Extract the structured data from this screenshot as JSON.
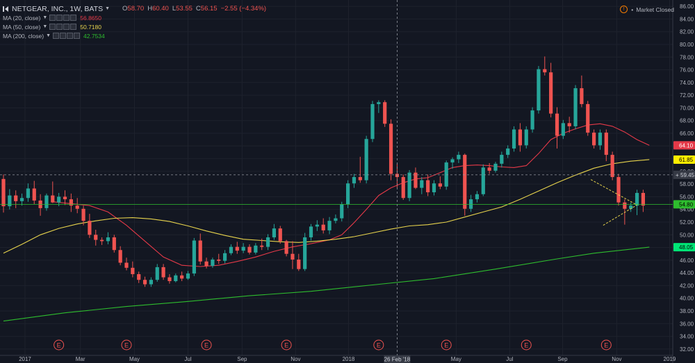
{
  "header": {
    "title": "NETGEAR, INC., 1W, BATS",
    "ohlc": [
      {
        "label": "O",
        "value": "58.70"
      },
      {
        "label": "H",
        "value": "60.40"
      },
      {
        "label": "L",
        "value": "53.55"
      },
      {
        "label": "C",
        "value": "56.15"
      }
    ],
    "change": "−2.55 (−4.34%)",
    "market_status": "Market Closed"
  },
  "indicators": [
    {
      "name": "MA (20, close)",
      "value": "56.8650",
      "color": "#e53948"
    },
    {
      "name": "MA (50, close)",
      "value": "50.7180",
      "color": "#e8d44d"
    },
    {
      "name": "MA (200, close)",
      "value": "42.7534",
      "color": "#2ebd2e"
    }
  ],
  "chart_data": {
    "type": "candlestick",
    "y_range": [
      31,
      87
    ],
    "y_ticks": [
      "32.00",
      "34.00",
      "36.00",
      "38.00",
      "40.00",
      "42.00",
      "44.00",
      "46.00",
      "48.00",
      "50.00",
      "52.00",
      "54.00",
      "56.00",
      "58.00",
      "60.00",
      "62.00",
      "64.00",
      "66.00",
      "68.00",
      "70.00",
      "72.00",
      "74.00",
      "76.00",
      "78.00",
      "80.00",
      "82.00",
      "84.00",
      "86.00"
    ],
    "x_labels": [
      {
        "label": "2017",
        "week": 3.5
      },
      {
        "label": "Mar",
        "week": 12.5
      },
      {
        "label": "May",
        "week": 21.3
      },
      {
        "label": "Jul",
        "week": 30
      },
      {
        "label": "Sep",
        "week": 38.8
      },
      {
        "label": "Nov",
        "week": 47.5
      },
      {
        "label": "2018",
        "week": 56.1
      },
      {
        "label": "May",
        "week": 73.6
      },
      {
        "label": "Jul",
        "week": 82.3
      },
      {
        "label": "Sep",
        "week": 90.9
      },
      {
        "label": "Nov",
        "week": 99.7
      },
      {
        "label": "2019",
        "week": 108.3
      }
    ],
    "crosshair": {
      "week": 64,
      "price": 59.45,
      "date_label": "26 Feb '18",
      "price_label": "59.45"
    },
    "price_labels": [
      {
        "value": 64.1,
        "text": "64.10",
        "bg": "#e53948",
        "fg": "#ffffff"
      },
      {
        "value": 61.85,
        "text": "61.85",
        "bg": "#ffee00",
        "fg": "#000000"
      },
      {
        "value": 54.8,
        "text": "54.80",
        "bg": "#2ebd2e",
        "fg": "#000000"
      },
      {
        "value": 48.05,
        "text": "48.05",
        "bg": "#00e676",
        "fg": "#000000"
      }
    ],
    "current_price_line": 54.8,
    "earnings": {
      "label": "E",
      "weeks": [
        9,
        20,
        33,
        46,
        61,
        72,
        85,
        98
      ]
    },
    "triangle": {
      "upper_start": [
        95.5,
        58.7
      ],
      "lower_start": [
        97.5,
        51.5
      ],
      "apex": [
        103,
        54.7
      ]
    },
    "candles": [
      [
        0,
        58.8,
        59.5,
        53.5,
        54.5
      ],
      [
        1,
        54.5,
        57.2,
        54,
        56.2
      ],
      [
        2,
        56.2,
        57,
        54.2,
        55.3
      ],
      [
        3,
        55.3,
        56.5,
        54.6,
        55.8
      ],
      [
        4,
        55.8,
        58.1,
        55.2,
        57.3
      ],
      [
        5,
        57.3,
        58.5,
        54.8,
        55.4
      ],
      [
        6,
        55.4,
        56.4,
        53,
        54.2
      ],
      [
        7,
        54.2,
        56.5,
        53.8,
        56.2
      ],
      [
        8,
        56.2,
        58.4,
        55,
        55.1
      ],
      [
        9,
        55.1,
        56.6,
        54.5,
        56
      ],
      [
        10,
        56,
        57,
        54.7,
        55.6
      ],
      [
        11,
        55.6,
        56.5,
        53.6,
        54.6
      ],
      [
        12,
        54.6,
        55.8,
        53.4,
        54.1
      ],
      [
        13,
        54.1,
        54.6,
        51.5,
        52.2
      ],
      [
        14,
        52.2,
        53.3,
        49.5,
        50
      ],
      [
        15,
        50,
        50.8,
        48.3,
        49.2
      ],
      [
        16,
        49.2,
        49.6,
        48.4,
        49
      ],
      [
        17,
        49,
        50.4,
        48.5,
        49.6
      ],
      [
        18,
        49.6,
        50,
        47.2,
        47.6
      ],
      [
        19,
        47.6,
        48.2,
        45.2,
        45.6
      ],
      [
        20,
        45.6,
        46.4,
        44.4,
        44.8
      ],
      [
        21,
        44.8,
        45.8,
        43.3,
        43.8
      ],
      [
        22,
        43.8,
        44.2,
        42.4,
        42.9
      ],
      [
        23,
        42.9,
        43.4,
        41.8,
        42.2
      ],
      [
        24,
        42.2,
        43.3,
        41.8,
        42.9
      ],
      [
        25,
        42.9,
        45.4,
        42.6,
        44.9
      ],
      [
        26,
        44.9,
        45.4,
        42.9,
        43.3
      ],
      [
        27,
        43.3,
        43.8,
        42.3,
        42.7
      ],
      [
        28,
        42.7,
        43.9,
        42.5,
        43.6
      ],
      [
        29,
        43.6,
        44.2,
        42.7,
        43.1
      ],
      [
        30,
        43.1,
        44.3,
        42.9,
        43.9
      ],
      [
        31,
        43.9,
        49.5,
        43.5,
        49.1
      ],
      [
        32,
        49.1,
        50.2,
        45.3,
        45.8
      ],
      [
        33,
        45.8,
        46.4,
        44.7,
        45.1
      ],
      [
        34,
        45.1,
        46.4,
        44.8,
        46.1
      ],
      [
        35,
        46.1,
        47,
        45.4,
        45.9
      ],
      [
        36,
        45.9,
        47.6,
        45.5,
        47.1
      ],
      [
        37,
        47.1,
        48.5,
        46.8,
        48.1
      ],
      [
        38,
        48.1,
        48.9,
        47,
        47.5
      ],
      [
        39,
        47.5,
        48.7,
        47.1,
        48.1
      ],
      [
        40,
        48.1,
        48.5,
        46.9,
        47.2
      ],
      [
        41,
        47.2,
        48.7,
        46.9,
        48.3
      ],
      [
        42,
        48.3,
        49.4,
        47.6,
        48.1
      ],
      [
        43,
        48.1,
        50.1,
        47.6,
        49.6
      ],
      [
        44,
        49.6,
        51.7,
        49.2,
        51
      ],
      [
        45,
        51,
        51.4,
        48.6,
        49
      ],
      [
        46,
        49,
        49.2,
        46.6,
        47
      ],
      [
        47,
        47,
        49,
        44.6,
        46.1
      ],
      [
        48,
        46.1,
        47,
        44.3,
        44.6
      ],
      [
        49,
        44.6,
        50.3,
        44.3,
        49.6
      ],
      [
        50,
        49.6,
        51.7,
        49.1,
        51.3
      ],
      [
        51,
        51.3,
        52.3,
        50.6,
        51.6
      ],
      [
        52,
        51.6,
        52.6,
        50.2,
        50.7
      ],
      [
        53,
        50.7,
        52.8,
        50.1,
        52.2
      ],
      [
        54,
        52.2,
        53.2,
        51.8,
        52.6
      ],
      [
        55,
        52.6,
        55.2,
        52.1,
        54.8
      ],
      [
        56,
        54.8,
        58.6,
        54.2,
        58.1
      ],
      [
        57,
        58.1,
        59.6,
        57.4,
        59.1
      ],
      [
        58,
        59.1,
        62.3,
        58.2,
        58.6
      ],
      [
        59,
        58.6,
        65.6,
        58.1,
        65.1
      ],
      [
        60,
        65.1,
        71.1,
        64.6,
        70.6
      ],
      [
        61,
        70.6,
        71.2,
        69.2,
        70.9
      ],
      [
        62,
        70.9,
        71.2,
        67,
        67.5
      ],
      [
        63,
        67.5,
        68.2,
        58.6,
        59.6
      ],
      [
        64,
        59.6,
        61.2,
        57.4,
        59.1
      ],
      [
        65,
        59.1,
        59.5,
        55.5,
        55.8
      ],
      [
        66,
        55.8,
        60.2,
        55.3,
        59.8
      ],
      [
        67,
        59.8,
        60.6,
        57.2,
        57.4
      ],
      [
        68,
        57.4,
        59.1,
        56.4,
        58.6
      ],
      [
        69,
        58.6,
        59.5,
        56.1,
        56.7
      ],
      [
        70,
        56.7,
        58.6,
        56.2,
        58.1
      ],
      [
        71,
        58.1,
        59.2,
        57.2,
        57.6
      ],
      [
        72,
        57.6,
        61.7,
        57.1,
        61.4
      ],
      [
        73,
        61.4,
        62.2,
        60.4,
        61.9
      ],
      [
        74,
        61.9,
        63.1,
        61.3,
        62.6
      ],
      [
        75,
        62.6,
        62.8,
        53,
        54.1
      ],
      [
        76,
        54.1,
        56.3,
        53.6,
        55.6
      ],
      [
        77,
        55.6,
        56.9,
        55.1,
        56.4
      ],
      [
        78,
        56.4,
        61.1,
        56.1,
        60.6
      ],
      [
        79,
        60.6,
        61.3,
        59.6,
        60.1
      ],
      [
        80,
        60.1,
        61.5,
        59.8,
        61.2
      ],
      [
        81,
        61.2,
        63.1,
        60.6,
        62.6
      ],
      [
        82,
        62.6,
        64.1,
        62.1,
        63.6
      ],
      [
        83,
        63.6,
        67.1,
        63.1,
        66.6
      ],
      [
        84,
        66.6,
        67.6,
        63.1,
        64.1
      ],
      [
        85,
        64.1,
        67.1,
        63.6,
        66.6
      ],
      [
        86,
        66.6,
        70.1,
        66.1,
        69.6
      ],
      [
        87,
        69.6,
        76.6,
        69.1,
        76.1
      ],
      [
        88,
        76.1,
        78.1,
        75.1,
        75.6
      ],
      [
        89,
        75.6,
        77.1,
        68.5,
        69.1
      ],
      [
        90,
        69.1,
        70.1,
        63.6,
        65.6
      ],
      [
        91,
        65.6,
        68.1,
        65.1,
        67.6
      ],
      [
        92,
        67.6,
        68.6,
        66.1,
        67.1
      ],
      [
        93,
        67.1,
        73.6,
        66.6,
        73.1
      ],
      [
        94,
        73.1,
        75.1,
        70.1,
        70.6
      ],
      [
        95,
        70.6,
        71.1,
        65.6,
        66.1
      ],
      [
        96,
        66.1,
        66.6,
        63.6,
        64.1
      ],
      [
        97,
        64.1,
        66.6,
        63.4,
        66.1
      ],
      [
        98,
        66.1,
        66.6,
        61.6,
        62.6
      ],
      [
        99,
        62.6,
        63.1,
        58.6,
        59.1
      ],
      [
        100,
        59.1,
        59.6,
        54.6,
        55.1
      ],
      [
        101,
        55.1,
        55.6,
        51.6,
        54.1
      ],
      [
        102,
        54.1,
        55.1,
        53.6,
        54.6
      ],
      [
        103,
        54.6,
        57.1,
        53.1,
        56.6
      ],
      [
        104,
        56.6,
        57.1,
        53.6,
        54.6
      ]
    ],
    "ma": [
      {
        "name": "MA (20, close)",
        "color": "#e53948",
        "points": [
          [
            8,
            55.2
          ],
          [
            14,
            54.6
          ],
          [
            17,
            53.6
          ],
          [
            20,
            51.5
          ],
          [
            23,
            49
          ],
          [
            26,
            46.5
          ],
          [
            29,
            45.2
          ],
          [
            32,
            45
          ],
          [
            35,
            45.2
          ],
          [
            38,
            45.8
          ],
          [
            41,
            46.5
          ],
          [
            44,
            47.4
          ],
          [
            47,
            48.1
          ],
          [
            50,
            48.6
          ],
          [
            53,
            49.2
          ],
          [
            55,
            50
          ],
          [
            57,
            51.9
          ],
          [
            59,
            54
          ],
          [
            61,
            56.2
          ],
          [
            63,
            57.4
          ],
          [
            65,
            58.2
          ],
          [
            67,
            58.8
          ],
          [
            69,
            59
          ],
          [
            71,
            59.8
          ],
          [
            73,
            60.6
          ],
          [
            75,
            60.9
          ],
          [
            77,
            61
          ],
          [
            79,
            60.9
          ],
          [
            81,
            60.7
          ],
          [
            83,
            60.6
          ],
          [
            85,
            60.9
          ],
          [
            87,
            62.8
          ],
          [
            89,
            65
          ],
          [
            91,
            66
          ],
          [
            93,
            66.7
          ],
          [
            95,
            67.3
          ],
          [
            97,
            67.5
          ],
          [
            99,
            67.1
          ],
          [
            101,
            66.2
          ],
          [
            103,
            65
          ],
          [
            105,
            64.1
          ]
        ]
      },
      {
        "name": "MA (50, close)",
        "color": "#e8d44d",
        "points": [
          [
            0,
            47.1
          ],
          [
            3,
            48.5
          ],
          [
            6,
            50
          ],
          [
            9,
            51
          ],
          [
            12,
            51.7
          ],
          [
            15,
            52.2
          ],
          [
            18,
            52.6
          ],
          [
            21,
            52.7
          ],
          [
            24,
            52.5
          ],
          [
            27,
            52.1
          ],
          [
            30,
            51.4
          ],
          [
            33,
            50.6
          ],
          [
            36,
            49.9
          ],
          [
            39,
            49.3
          ],
          [
            42,
            49.1
          ],
          [
            45,
            48.9
          ],
          [
            48,
            48.8
          ],
          [
            51,
            49
          ],
          [
            54,
            49.3
          ],
          [
            57,
            49.7
          ],
          [
            60,
            50.3
          ],
          [
            63,
            50.9
          ],
          [
            66,
            51.4
          ],
          [
            69,
            51.6
          ],
          [
            72,
            52
          ],
          [
            75,
            52.8
          ],
          [
            78,
            53.6
          ],
          [
            81,
            54.4
          ],
          [
            84,
            55.6
          ],
          [
            87,
            56.9
          ],
          [
            90,
            58.2
          ],
          [
            93,
            59.4
          ],
          [
            96,
            60.5
          ],
          [
            99,
            61.2
          ],
          [
            102,
            61.6
          ],
          [
            105,
            61.85
          ]
        ]
      },
      {
        "name": "MA (200, close)",
        "color": "#2ebd2e",
        "points": [
          [
            0,
            36.4
          ],
          [
            10,
            37.7
          ],
          [
            20,
            38.7
          ],
          [
            30,
            39.5
          ],
          [
            40,
            40.4
          ],
          [
            50,
            41.1
          ],
          [
            60,
            42.1
          ],
          [
            70,
            43.1
          ],
          [
            80,
            44.6
          ],
          [
            90,
            46.2
          ],
          [
            96,
            47.1
          ],
          [
            105,
            48.05
          ]
        ]
      }
    ]
  }
}
